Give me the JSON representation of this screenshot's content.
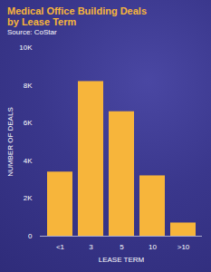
{
  "chart_data": {
    "type": "bar",
    "title": "Medical Office Building Deals by Lease Term",
    "subtitle": "Source: CoStar",
    "x_label": "LEASE TERM",
    "y_label": "NUMBER OF DEALS",
    "categories": [
      "<1",
      "3",
      "5",
      "10",
      ">10"
    ],
    "values": [
      3400,
      8200,
      6600,
      3200,
      700
    ],
    "color": "#f7b53b",
    "ylim": [
      0,
      10000
    ],
    "yticks": [
      0,
      {
        "value": 2000,
        "label": "2K"
      },
      {
        "value": 4000,
        "label": "4K"
      },
      {
        "value": 6000,
        "label": "6K"
      },
      {
        "value": 8000,
        "label": "8K"
      },
      {
        "value": 10000,
        "label": "10K"
      }
    ],
    "grid": false
  }
}
